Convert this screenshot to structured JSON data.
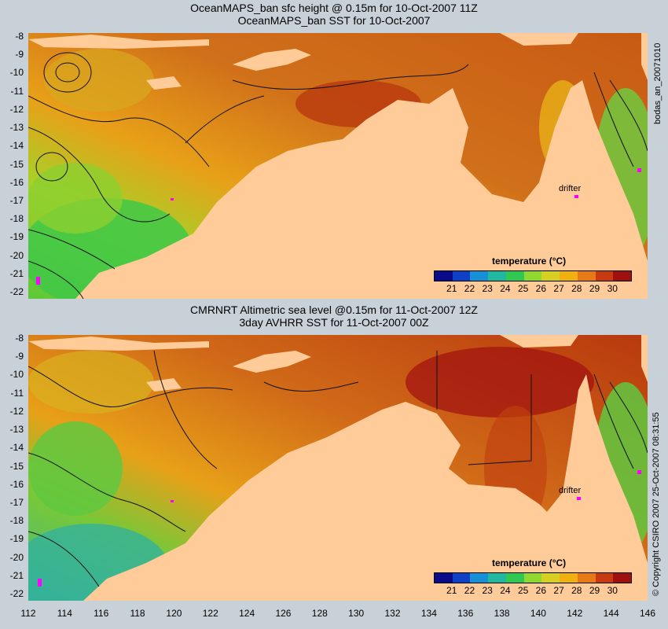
{
  "top_panel": {
    "title_line1": "OceanMAPS_ban sfc height @ 0.15m for 10-Oct-2007 11Z",
    "title_line2": "OceanMAPS_ban SST for 10-Oct-2007",
    "side_label": "bodas_an_20071010",
    "drifter_label": "drifter"
  },
  "bottom_panel": {
    "title_line1": "CMRNRT Altimetric sea level  @0.15m  for 11-Oct-2007 12Z",
    "title_line2": "3day AVHRR SST for 11-Oct-2007 00Z",
    "side_label": "© Copyright CSIRO 2007   25-Oct-2007 08:31:55",
    "drifter_label": "drifter"
  },
  "lat_ticks": [
    "-8",
    "-9",
    "-10",
    "-11",
    "-12",
    "-13",
    "-14",
    "-15",
    "-16",
    "-17",
    "-18",
    "-19",
    "-20",
    "-21",
    "-22"
  ],
  "lon_ticks": [
    "112",
    "114",
    "116",
    "118",
    "120",
    "122",
    "124",
    "126",
    "128",
    "130",
    "132",
    "134",
    "136",
    "138",
    "140",
    "142",
    "144",
    "146"
  ],
  "legend": {
    "title": "temperature (°C)",
    "labels": [
      "21",
      "22",
      "23",
      "24",
      "25",
      "26",
      "27",
      "28",
      "29",
      "30"
    ],
    "colors": [
      "#0a0a8a",
      "#1040c8",
      "#1890d8",
      "#20b8a0",
      "#30c850",
      "#90d830",
      "#d8d020",
      "#f0b010",
      "#e87818",
      "#c83a10",
      "#a01010"
    ]
  },
  "colors": {
    "land": "#ffcc99",
    "background": "#c8d0d8",
    "sea_warm": "#d47a1e",
    "sea_hot": "#b8360e",
    "sea_green": "#6cc83c",
    "drifter": "#ff00ff"
  }
}
